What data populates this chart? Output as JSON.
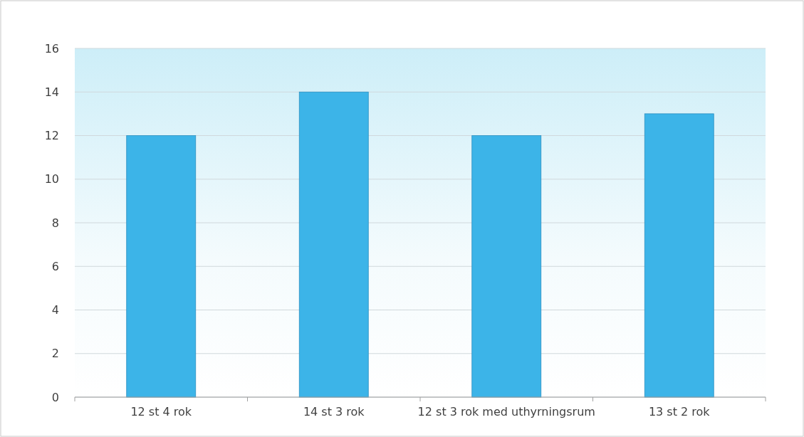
{
  "chart_data": {
    "type": "bar",
    "categories": [
      "12 st 4 rok",
      "14 st 3 rok",
      "12 st 3 rok med uthyrningsrum",
      "13 st 2 rok"
    ],
    "values": [
      12,
      14,
      12,
      13
    ],
    "color": "#3cb4e8",
    "ylim": [
      0,
      16
    ],
    "yticks": [
      0,
      2,
      4,
      6,
      8,
      10,
      12,
      14,
      16
    ],
    "grid": "y"
  }
}
